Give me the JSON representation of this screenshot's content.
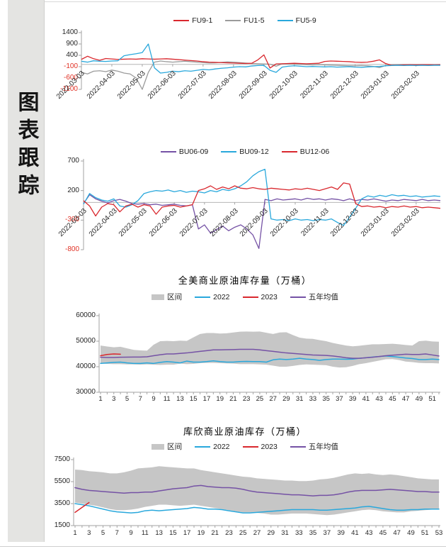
{
  "sidebar": {
    "title": "图表跟踪"
  },
  "colors": {
    "red": "#d9282e",
    "gray": "#9b9b9b",
    "blue": "#29a8dc",
    "purple": "#7552a5",
    "band": "#c6c6c6",
    "negative_tick": "#e03024"
  },
  "chart_data": [
    {
      "id": "fu-spreads",
      "type": "line",
      "title": "",
      "ylim": [
        -1100,
        1400
      ],
      "y_ticks": [
        1400,
        900,
        400,
        -100,
        -600,
        -1100
      ],
      "x_tick_labels": [
        "2022-03-03",
        "2022-04-03",
        "2022-05-03",
        "2022-06-03",
        "2022-07-03",
        "2022-08-03",
        "2022-09-03",
        "2022-10-03",
        "2022-11-03",
        "2022-12-03",
        "2023-01-03",
        "2023-02-03"
      ],
      "legend": [
        {
          "label": "FU9-1",
          "type": "line",
          "color": "#d9282e"
        },
        {
          "label": "FU1-5",
          "type": "line",
          "color": "#9b9b9b"
        },
        {
          "label": "FU5-9",
          "type": "line",
          "color": "#29a8dc"
        }
      ],
      "series": [
        {
          "name": "FU1-5",
          "color": "#9b9b9b",
          "values": [
            -350,
            -420,
            -300,
            -280,
            -320,
            -250,
            -300,
            -380,
            -420,
            -600,
            -1100,
            -350,
            100,
            150,
            120,
            100,
            120,
            140,
            120,
            100,
            80,
            60,
            70,
            90,
            110,
            100,
            80,
            60,
            40,
            30,
            20,
            10,
            -80,
            30,
            20,
            10,
            0,
            -10,
            -20,
            -10,
            -20,
            -30,
            -40,
            -50,
            -60,
            -60,
            -50,
            -60,
            -90,
            -140,
            -50,
            -20,
            -10,
            -10,
            -20,
            -10,
            -10,
            -10,
            -20,
            -10
          ]
        },
        {
          "name": "FU9-1",
          "color": "#d9282e",
          "values": [
            220,
            360,
            250,
            180,
            260,
            240,
            220,
            230,
            240,
            230,
            250,
            240,
            230,
            240,
            250,
            230,
            210,
            190,
            170,
            150,
            120,
            100,
            90,
            80,
            70,
            60,
            50,
            40,
            50,
            200,
            420,
            -160,
            20,
            30,
            40,
            50,
            40,
            30,
            40,
            50,
            130,
            150,
            140,
            130,
            120,
            100,
            90,
            100,
            140,
            200,
            40,
            -40,
            -30,
            -20,
            -10,
            -20,
            -10,
            -10,
            -20,
            -10
          ]
        },
        {
          "name": "FU5-9",
          "color": "#29a8dc",
          "values": [
            140,
            100,
            160,
            140,
            130,
            150,
            160,
            380,
            430,
            470,
            520,
            900,
            -150,
            -380,
            -350,
            -300,
            -320,
            -280,
            -300,
            -260,
            -220,
            -240,
            -200,
            -170,
            -150,
            -120,
            -100,
            -110,
            -70,
            -50,
            -40,
            -260,
            -350,
            -120,
            -80,
            -60,
            -80,
            -100,
            -90,
            -100,
            -110,
            -100,
            -120,
            -110,
            -100,
            -120,
            -130,
            -110,
            -100,
            -90,
            -60,
            -50,
            -40,
            -50,
            -40,
            -50,
            -40,
            -50,
            -40,
            -40
          ]
        }
      ]
    },
    {
      "id": "bu-spreads",
      "type": "line",
      "title": "",
      "ylim": [
        -800,
        700
      ],
      "y_ticks": [
        700,
        200,
        -300,
        -800
      ],
      "x_tick_labels": [
        "2022-03-03",
        "2022-04-03",
        "2022-05-03",
        "2022-06-03",
        "2022-07-03",
        "2022-08-03",
        "2022-09-03",
        "2022-10-03",
        "2022-11-03",
        "2022-12-03",
        "2023-01-03",
        "2023-02-03"
      ],
      "legend": [
        {
          "label": "BU06-09",
          "type": "line",
          "color": "#7552a5"
        },
        {
          "label": "BU09-12",
          "type": "line",
          "color": "#29a8dc"
        },
        {
          "label": "BU12-06",
          "type": "line",
          "color": "#d9282e"
        }
      ],
      "series": [
        {
          "name": "BU06-09",
          "color": "#7552a5",
          "values": [
            -20,
            130,
            60,
            20,
            -10,
            30,
            50,
            20,
            -20,
            -30,
            -20,
            -40,
            -30,
            -50,
            -40,
            -30,
            -50,
            -60,
            -40,
            -450,
            -380,
            -520,
            -460,
            -400,
            -480,
            -420,
            -380,
            -450,
            -550,
            -780,
            50,
            30,
            60,
            40,
            50,
            60,
            40,
            70,
            50,
            60,
            40,
            60,
            50,
            30,
            60,
            30,
            50,
            40,
            60,
            40,
            20,
            40,
            30,
            50,
            40,
            30,
            50,
            30,
            40,
            30
          ]
        },
        {
          "name": "BU09-12",
          "color": "#29a8dc",
          "values": [
            -30,
            150,
            80,
            40,
            20,
            60,
            -60,
            -80,
            -40,
            30,
            150,
            180,
            200,
            190,
            210,
            180,
            200,
            170,
            190,
            180,
            160,
            200,
            180,
            220,
            200,
            230,
            280,
            350,
            450,
            520,
            560,
            -280,
            -300,
            -290,
            -310,
            -280,
            -300,
            -290,
            -310,
            -290,
            -300,
            -280,
            -340,
            -390,
            -250,
            -100,
            60,
            110,
            90,
            120,
            100,
            130,
            110,
            120,
            100,
            110,
            90,
            100,
            110,
            100
          ]
        },
        {
          "name": "BU12-06",
          "color": "#d9282e",
          "values": [
            30,
            -60,
            -230,
            -80,
            -20,
            -40,
            -160,
            -60,
            -30,
            -80,
            -40,
            -60,
            -200,
            -80,
            -60,
            -50,
            -80,
            -60,
            -40,
            200,
            230,
            280,
            220,
            260,
            230,
            280,
            240,
            230,
            250,
            230,
            220,
            240,
            230,
            220,
            210,
            230,
            220,
            240,
            220,
            200,
            230,
            260,
            220,
            330,
            310,
            -20,
            -70,
            -60,
            -80,
            -70,
            -90,
            -70,
            -80,
            -60,
            -80,
            -70,
            -90,
            -80,
            -90,
            -100
          ]
        }
      ]
    },
    {
      "id": "us-crude-inventory",
      "type": "line",
      "title": "全美商业原油库存量（万桶）",
      "ylim": [
        30000,
        60000
      ],
      "y_ticks": [
        60000,
        50000,
        40000,
        30000
      ],
      "weeks": 52,
      "x_tick_labels": [
        1,
        3,
        5,
        7,
        9,
        11,
        13,
        15,
        17,
        19,
        21,
        23,
        25,
        27,
        29,
        31,
        33,
        35,
        37,
        39,
        41,
        43,
        45,
        47,
        49,
        51
      ],
      "legend": [
        {
          "label": "区间",
          "type": "band",
          "color": "#c6c6c6"
        },
        {
          "label": "2022",
          "type": "line",
          "color": "#29a8dc"
        },
        {
          "label": "2023",
          "type": "line",
          "color": "#d9282e"
        },
        {
          "label": "五年均值",
          "type": "line",
          "color": "#7552a5"
        }
      ],
      "band": {
        "label": "区间",
        "color": "#c6c6c6",
        "upper": [
          48300,
          47900,
          47600,
          47800,
          47200,
          46600,
          46400,
          46300,
          48600,
          50000,
          50100,
          50000,
          50200,
          50100,
          51500,
          52800,
          53200,
          53200,
          53000,
          53100,
          53400,
          53700,
          53800,
          53700,
          53800,
          53300,
          52800,
          53400,
          53500,
          52400,
          51400,
          51000,
          50900,
          50400,
          50000,
          49300,
          48800,
          48300,
          48000,
          48200,
          48500,
          48800,
          48800,
          48900,
          49000,
          48800,
          48500,
          48300,
          50000,
          50200,
          49900,
          49800
        ],
        "lower": [
          41300,
          41100,
          41000,
          41000,
          40900,
          40900,
          40800,
          40900,
          40800,
          40700,
          40800,
          40800,
          41200,
          41000,
          41100,
          41400,
          41500,
          41500,
          41400,
          41300,
          41200,
          41000,
          41000,
          41000,
          40900,
          40800,
          40400,
          40000,
          40000,
          40300,
          40700,
          40900,
          40800,
          40700,
          40600,
          40000,
          39700,
          39800,
          40300,
          41000,
          41400,
          41900,
          42400,
          42900,
          43000,
          42600,
          42000,
          41800,
          41500,
          41400,
          41400,
          41300
        ]
      },
      "series": [
        {
          "name": "2022",
          "color": "#29a8dc",
          "values": [
            41300,
            41500,
            41700,
            41800,
            41500,
            41300,
            41300,
            41500,
            41300,
            41700,
            42000,
            41800,
            41500,
            42200,
            41800,
            41800,
            42000,
            42300,
            42000,
            41800,
            41800,
            42000,
            42100,
            42000,
            42000,
            41800,
            42700,
            43000,
            42800,
            43000,
            43300,
            43000,
            42800,
            42500,
            42800,
            43000,
            43000,
            42900,
            43000,
            43300,
            43500,
            43800,
            44000,
            44200,
            44000,
            43700,
            43400,
            43200,
            42800,
            42800,
            43000,
            42800
          ]
        },
        {
          "name": "2023",
          "color": "#d9282e",
          "values": [
            44300,
            44800,
            45000,
            44900
          ]
        },
        {
          "name": "五年均值",
          "color": "#7552a5",
          "values": [
            43700,
            43600,
            43600,
            43700,
            43750,
            43800,
            43800,
            43900,
            44300,
            44700,
            45000,
            45000,
            45200,
            45400,
            45700,
            46000,
            46300,
            46600,
            46600,
            46650,
            46700,
            46800,
            46800,
            46800,
            46600,
            46300,
            46000,
            45700,
            45400,
            45200,
            45000,
            44800,
            44600,
            44500,
            44400,
            44200,
            43900,
            43500,
            43300,
            43300,
            43500,
            43700,
            44000,
            44300,
            44500,
            44700,
            44900,
            44800,
            44800,
            45000,
            44600,
            44200
          ]
        }
      ]
    },
    {
      "id": "cushing-crude-inventory",
      "type": "line",
      "title": "库欣商业原油库存（万桶）",
      "ylim": [
        1500,
        7500
      ],
      "y_ticks": [
        7500,
        5500,
        3500,
        1500
      ],
      "weeks": 53,
      "x_tick_labels": [
        1,
        3,
        5,
        7,
        9,
        11,
        13,
        15,
        17,
        19,
        21,
        23,
        25,
        27,
        29,
        31,
        33,
        35,
        37,
        39,
        41,
        43,
        45,
        47,
        49,
        51,
        53
      ],
      "legend": [
        {
          "label": "区间",
          "type": "band",
          "color": "#c6c6c6"
        },
        {
          "label": "2022",
          "type": "line",
          "color": "#29a8dc"
        },
        {
          "label": "2023",
          "type": "line",
          "color": "#d9282e"
        },
        {
          "label": "五年均值",
          "type": "line",
          "color": "#7552a5"
        }
      ],
      "band": {
        "label": "区间",
        "color": "#c6c6c6",
        "upper": [
          6600,
          6550,
          6450,
          6400,
          6350,
          6250,
          6250,
          6350,
          6500,
          6700,
          6750,
          6800,
          6900,
          6850,
          6800,
          6750,
          6700,
          6700,
          6550,
          6450,
          6350,
          6250,
          6150,
          6050,
          5950,
          5900,
          5800,
          5750,
          5700,
          5650,
          5600,
          5600,
          5550,
          5550,
          5600,
          5700,
          5750,
          5850,
          6000,
          6150,
          6250,
          6200,
          6250,
          6150,
          6100,
          6150,
          6100,
          6000,
          5900,
          5800,
          5750,
          5700,
          5700
        ],
        "lower": [
          3600,
          3500,
          3400,
          3300,
          3150,
          3000,
          2900,
          2900,
          2950,
          3050,
          3200,
          3300,
          3400,
          3400,
          3350,
          3300,
          3350,
          3400,
          3300,
          3200,
          3100,
          3000,
          2900,
          2800,
          2700,
          2700,
          2650,
          2600,
          2500,
          2500,
          2550,
          2600,
          2600,
          2600,
          2550,
          2500,
          2450,
          2500,
          2600,
          2700,
          2800,
          2900,
          2950,
          2900,
          2800,
          2750,
          2700,
          2700,
          2800,
          2850,
          2900,
          2950,
          3000
        ]
      },
      "series": [
        {
          "name": "2022",
          "color": "#29a8dc",
          "values": [
            3500,
            3400,
            3300,
            3150,
            3000,
            2850,
            2750,
            2700,
            2650,
            2700,
            2850,
            2900,
            2850,
            2900,
            2950,
            3000,
            3050,
            3150,
            3100,
            3000,
            3000,
            2950,
            2850,
            2750,
            2650,
            2650,
            2700,
            2750,
            2800,
            2850,
            2900,
            2950,
            2950,
            2950,
            2950,
            2900,
            2900,
            2950,
            3000,
            3050,
            3100,
            3200,
            3250,
            3150,
            3050,
            2950,
            2900,
            2900,
            2950,
            2950,
            3000,
            3000,
            3000
          ]
        },
        {
          "name": "2023",
          "color": "#d9282e",
          "values": [
            2700,
            3150,
            3600
          ]
        },
        {
          "name": "五年均值",
          "color": "#7552a5",
          "values": [
            4950,
            4800,
            4700,
            4650,
            4600,
            4550,
            4500,
            4450,
            4500,
            4500,
            4550,
            4550,
            4650,
            4750,
            4850,
            4900,
            4950,
            5100,
            5150,
            5050,
            5000,
            4950,
            4950,
            4900,
            4800,
            4650,
            4550,
            4500,
            4450,
            4400,
            4350,
            4300,
            4300,
            4250,
            4200,
            4250,
            4250,
            4300,
            4400,
            4550,
            4650,
            4700,
            4700,
            4700,
            4750,
            4800,
            4750,
            4700,
            4650,
            4600,
            4600,
            4550,
            4550
          ]
        }
      ]
    }
  ]
}
